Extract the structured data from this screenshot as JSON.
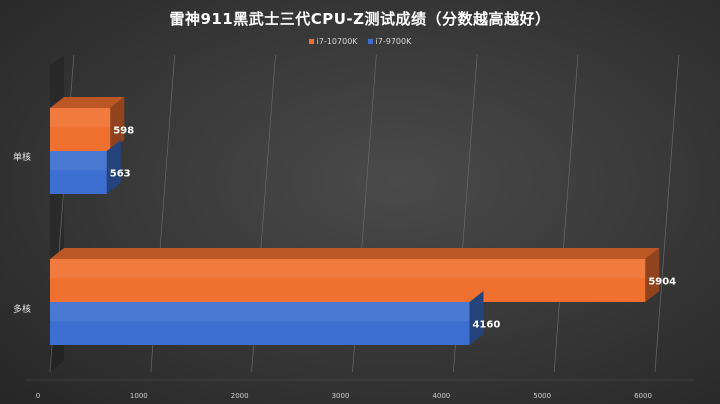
{
  "chart_data": {
    "type": "bar",
    "orientation": "horizontal",
    "style": "3d",
    "title": "雷神911黑武士三代CPU-Z测试成绩（分数越高越好）",
    "categories": [
      "单核",
      "多核"
    ],
    "series": [
      {
        "name": "i7-10700K",
        "color": "#f07030",
        "values": [
          598,
          5904
        ]
      },
      {
        "name": "i7-9700K",
        "color": "#3c6fd0",
        "values": [
          563,
          4160
        ]
      }
    ],
    "xlim": [
      0,
      6000
    ],
    "xticks": [
      0,
      1000,
      2000,
      3000,
      4000,
      5000,
      6000
    ],
    "grid": true,
    "legend_position": "top"
  }
}
